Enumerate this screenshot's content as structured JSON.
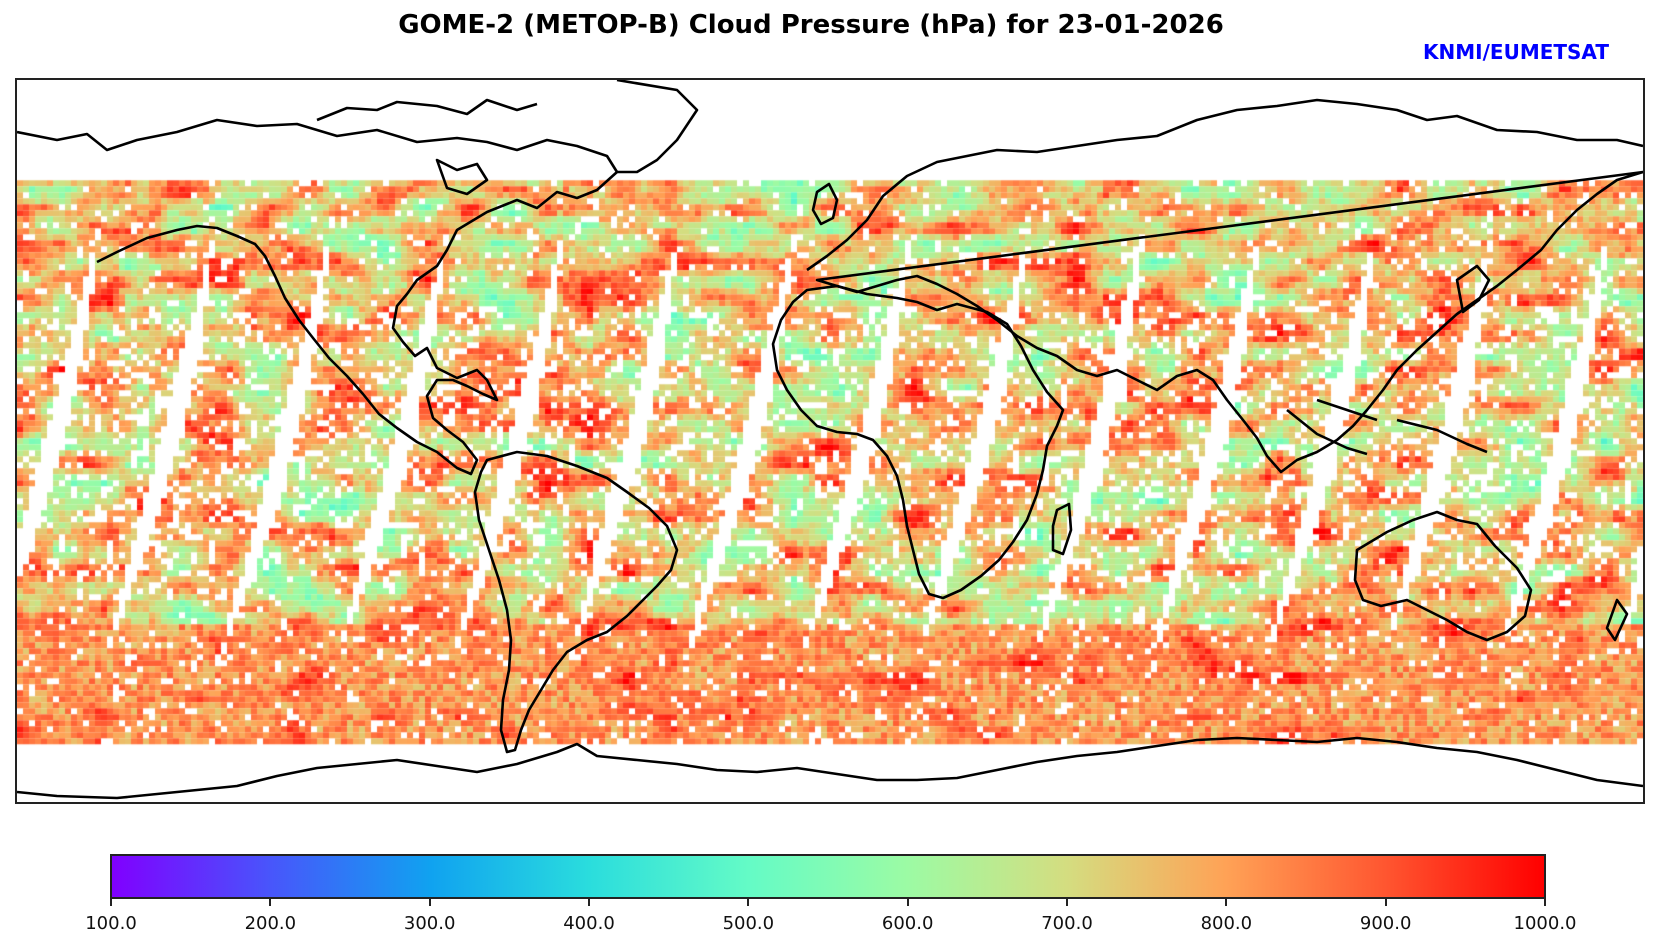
{
  "chart_data": {
    "type": "heatmap",
    "title": "GOME-2 (METOP-B) Cloud Pressure (hPa) for 23-01-2026",
    "credit": "KNMI/EUMETSAT",
    "projection": "plate-carree global map with coastlines",
    "variable": "Cloud Pressure",
    "units": "hPa",
    "colormap": "rainbow",
    "colorbar": {
      "orientation": "horizontal",
      "range": [
        100.0,
        1000.0
      ],
      "ticks": [
        100.0,
        200.0,
        300.0,
        400.0,
        500.0,
        600.0,
        700.0,
        800.0,
        900.0,
        1000.0
      ],
      "tick_labels": [
        "100.0",
        "200.0",
        "300.0",
        "400.0",
        "500.0",
        "600.0",
        "700.0",
        "800.0",
        "900.0",
        "1000.0"
      ],
      "stops": [
        "#8000ff",
        "#4856fb",
        "#10a2f0",
        "#2adddd",
        "#64fbc6",
        "#9cfba4",
        "#d4dd80",
        "#ffa256",
        "#ff5630",
        "#ff0000"
      ]
    },
    "swath_gaps": 14,
    "data_coverage_lat": [
      -75,
      65
    ]
  },
  "colors": {
    "credit": "#0000ff",
    "coastline": "#000000",
    "frame": "#222222"
  }
}
